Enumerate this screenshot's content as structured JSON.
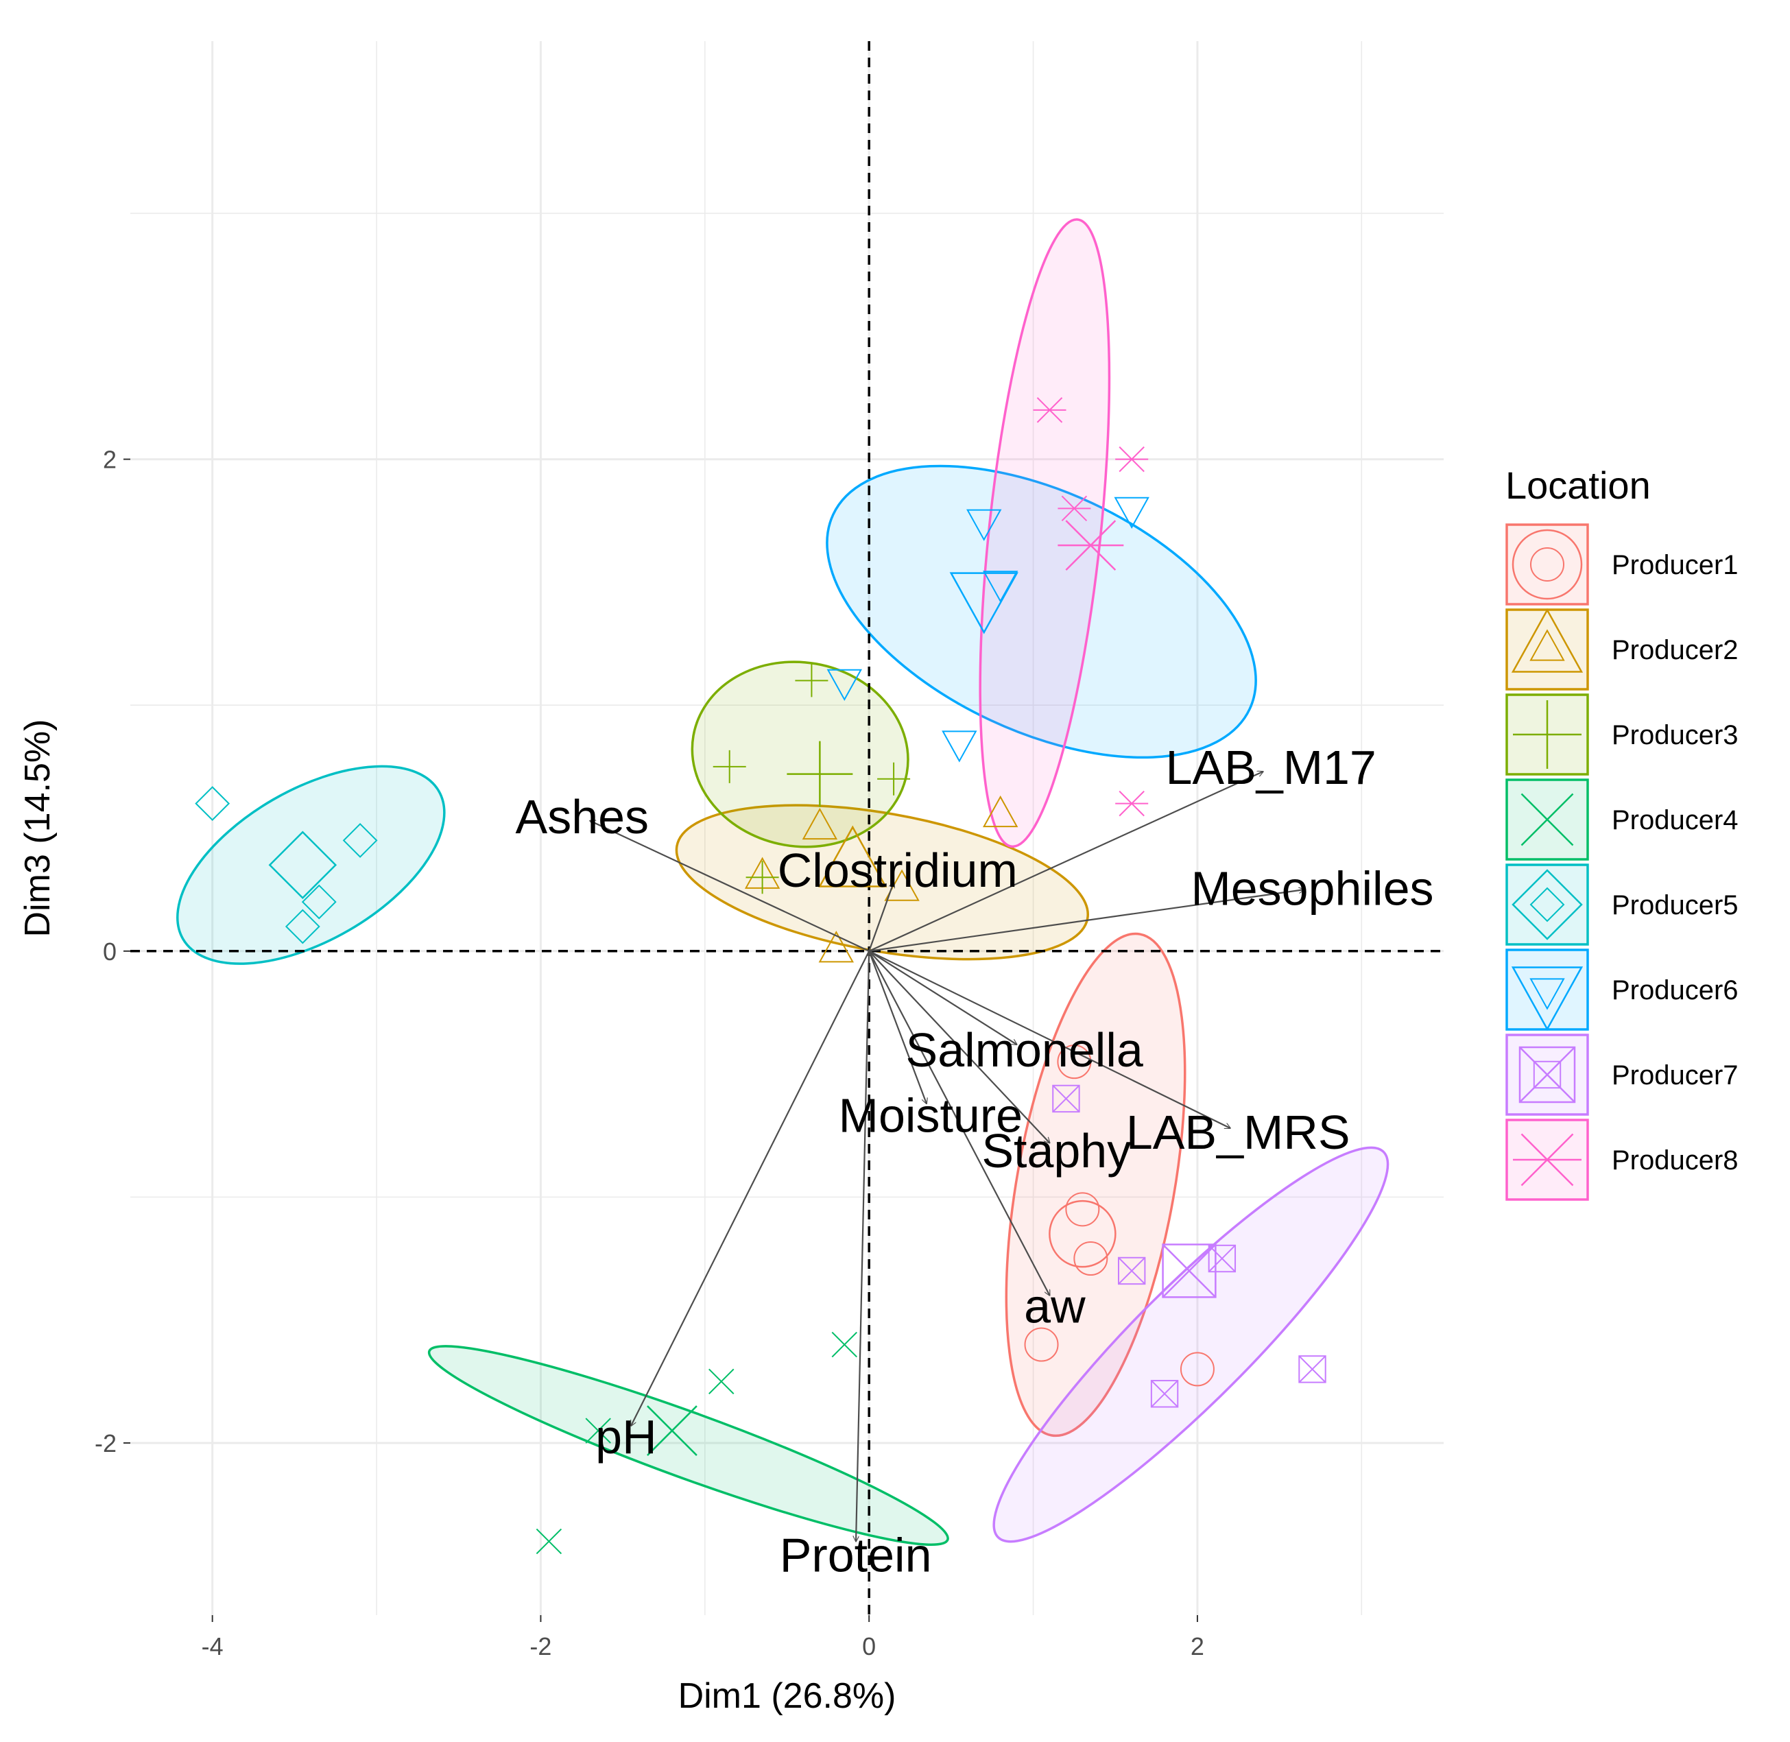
{
  "chart_data": {
    "type": "scatter",
    "title": "",
    "xlabel": "Dim1 (26.8%)",
    "ylabel": "Dim3 (14.5%)",
    "xlim": [
      -4.5,
      3.5
    ],
    "ylim": [
      -2.7,
      3.7
    ],
    "x_ticks": [
      -4,
      -2,
      0,
      2
    ],
    "y_ticks": [
      -2,
      0,
      2
    ],
    "x_tick_labels": [
      "-4",
      "-2",
      "0",
      "2"
    ],
    "y_tick_labels": [
      "-2",
      "0",
      "2"
    ],
    "legend": {
      "title": "Location",
      "position": "right"
    },
    "series": [
      {
        "name": "Producer1",
        "color": "#F8766D",
        "shape": "circle",
        "points": [
          [
            1.25,
            -0.45
          ],
          [
            1.3,
            -1.05
          ],
          [
            1.35,
            -1.25
          ],
          [
            1.05,
            -1.6
          ],
          [
            2.0,
            -1.7
          ]
        ],
        "mean": [
          1.3,
          -1.15
        ],
        "ellipse": {
          "cx": 1.38,
          "cy": -0.95,
          "rx": 1.55,
          "ry": 0.48,
          "angle": -80
        }
      },
      {
        "name": "Producer2",
        "color": "#CD9600",
        "shape": "triangle-up",
        "points": [
          [
            -0.3,
            0.5
          ],
          [
            0.8,
            0.55
          ],
          [
            -0.65,
            0.3
          ],
          [
            0.2,
            0.25
          ],
          [
            -0.2,
            0.0
          ]
        ],
        "mean": [
          -0.1,
          0.35
        ],
        "ellipse": {
          "cx": 0.08,
          "cy": 0.28,
          "rx": 1.27,
          "ry": 0.42,
          "angle": 10
        }
      },
      {
        "name": "Producer3",
        "color": "#7CAE00",
        "shape": "plus",
        "points": [
          [
            -0.35,
            1.1
          ],
          [
            -0.85,
            0.75
          ],
          [
            0.15,
            0.7
          ],
          [
            -0.65,
            0.3
          ]
        ],
        "mean": [
          -0.3,
          0.72
        ],
        "ellipse": {
          "cx": -0.42,
          "cy": 0.8,
          "rx": 0.66,
          "ry": 0.56,
          "angle": 10
        }
      },
      {
        "name": "Producer4",
        "color": "#00BE67",
        "shape": "cross",
        "points": [
          [
            -0.15,
            -1.6
          ],
          [
            -0.9,
            -1.75
          ],
          [
            -1.65,
            -1.95
          ],
          [
            -1.95,
            -2.4
          ]
        ],
        "mean": [
          -1.2,
          -1.95
        ],
        "ellipse": {
          "cx": -1.1,
          "cy": -2.01,
          "rx": 1.68,
          "ry": 0.2,
          "angle": 20
        }
      },
      {
        "name": "Producer5",
        "color": "#00BFC4",
        "shape": "diamond",
        "points": [
          [
            -4.0,
            0.6
          ],
          [
            -3.1,
            0.45
          ],
          [
            -3.35,
            0.2
          ],
          [
            -3.45,
            0.1
          ]
        ],
        "mean": [
          -3.45,
          0.35
        ],
        "ellipse": {
          "cx": -3.4,
          "cy": 0.35,
          "rx": 0.9,
          "ry": 0.46,
          "angle": -30
        }
      },
      {
        "name": "Producer6",
        "color": "#00A9FF",
        "shape": "triangle-down",
        "points": [
          [
            0.7,
            1.75
          ],
          [
            1.6,
            1.8
          ],
          [
            -0.15,
            1.1
          ],
          [
            0.55,
            0.85
          ],
          [
            0.8,
            1.5
          ]
        ],
        "mean": [
          0.7,
          1.45
        ],
        "ellipse": {
          "cx": 1.05,
          "cy": 1.38,
          "rx": 1.4,
          "ry": 0.73,
          "angle": 25
        }
      },
      {
        "name": "Producer7",
        "color": "#C77CFF",
        "shape": "square-cross",
        "points": [
          [
            1.2,
            -0.6
          ],
          [
            1.6,
            -1.3
          ],
          [
            2.15,
            -1.25
          ],
          [
            2.7,
            -1.7
          ],
          [
            1.8,
            -1.8
          ]
        ],
        "mean": [
          1.95,
          -1.3
        ],
        "ellipse": {
          "cx": 1.96,
          "cy": -1.6,
          "rx": 1.66,
          "ry": 0.35,
          "angle": -45
        }
      },
      {
        "name": "Producer8",
        "color": "#FF61CC",
        "shape": "asterisk",
        "points": [
          [
            1.1,
            2.2
          ],
          [
            1.6,
            2.0
          ],
          [
            1.25,
            1.8
          ],
          [
            1.6,
            0.6
          ]
        ],
        "mean": [
          1.35,
          1.65
        ],
        "ellipse": {
          "cx": 1.07,
          "cy": 1.7,
          "rx": 1.92,
          "ry": 0.34,
          "angle": -84
        }
      }
    ],
    "variables": [
      {
        "name": "LAB_M17",
        "x": 2.4,
        "y": 0.73
      },
      {
        "name": "Mesophiles",
        "x": 2.65,
        "y": 0.25
      },
      {
        "name": "Ashes",
        "x": -1.7,
        "y": 0.53
      },
      {
        "name": "Clostridium",
        "x": 0.15,
        "y": 0.28
      },
      {
        "name": "Salmonella",
        "x": 0.9,
        "y": -0.38
      },
      {
        "name": "LAB_MRS",
        "x": 2.2,
        "y": -0.72
      },
      {
        "name": "Staphy",
        "x": 1.1,
        "y": -0.78
      },
      {
        "name": "Moisture",
        "x": 0.35,
        "y": -0.62
      },
      {
        "name": "aw",
        "x": 1.1,
        "y": -1.4
      },
      {
        "name": "pH",
        "x": -1.45,
        "y": -1.93
      },
      {
        "name": "Protein",
        "x": -0.08,
        "y": -2.4
      }
    ]
  }
}
